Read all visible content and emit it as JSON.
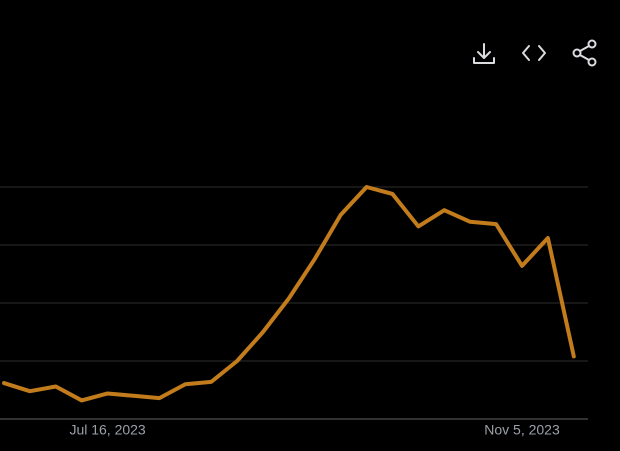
{
  "chart_data": {
    "type": "line",
    "categories": [
      null,
      null,
      null,
      null,
      "Jul 16, 2023",
      null,
      null,
      null,
      null,
      null,
      null,
      null,
      null,
      null,
      null,
      null,
      null,
      null,
      null,
      null,
      "Nov 5, 2023",
      null,
      null
    ],
    "series": [
      {
        "color": "#c27c1c",
        "values": [
          15.5,
          12,
          14,
          8,
          11,
          10,
          9,
          15,
          16,
          25,
          37.5,
          52,
          69,
          88,
          100,
          97,
          83,
          90,
          85,
          84,
          66,
          78,
          27
        ]
      }
    ],
    "ylim": [
      0,
      100
    ],
    "yticks": [
      0,
      25,
      50,
      75,
      100
    ],
    "grid": true
  }
}
